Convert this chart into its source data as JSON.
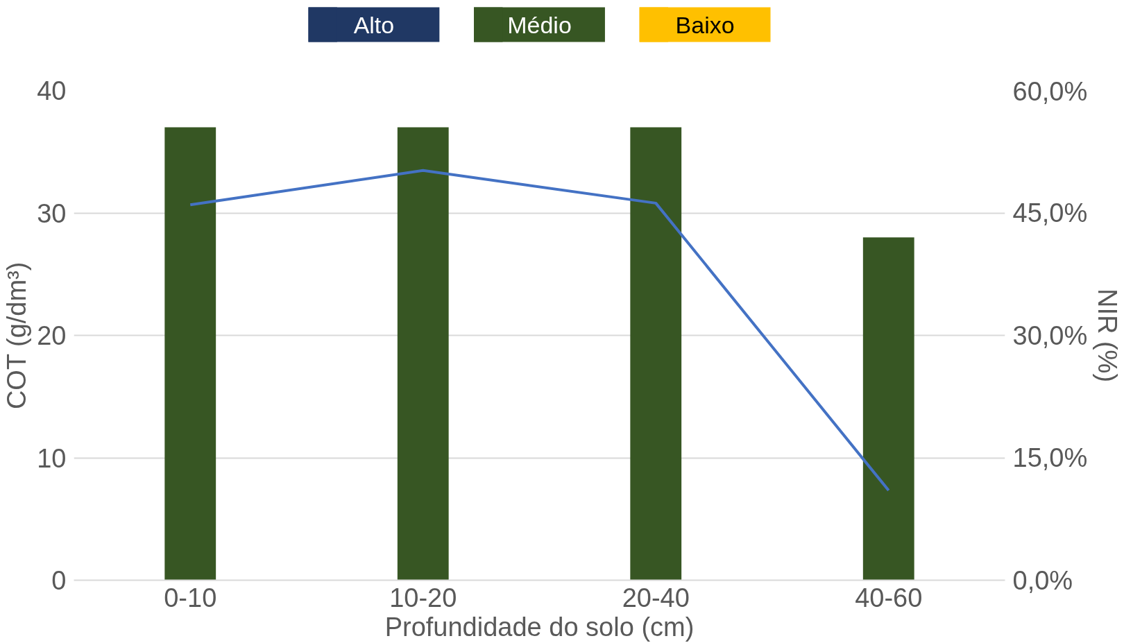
{
  "chart_data": {
    "type": "bar",
    "stacked": true,
    "xlabel": "Profundidade do solo (cm)",
    "ylabel": "COT (g/dm³)",
    "y2label": "NIR (%)",
    "categories": [
      "0-10",
      "10-20",
      "20-40",
      "40-60"
    ],
    "series": [
      {
        "name": "Alto",
        "color": "#203864",
        "values": [
          null,
          null,
          null,
          null
        ]
      },
      {
        "name": "Médio",
        "color": "#375623",
        "values": [
          37,
          37,
          37,
          28
        ]
      },
      {
        "name": "Baixo",
        "color": "#ffc000",
        "values": [
          null,
          null,
          null,
          null
        ]
      },
      {
        "type": "line",
        "axis": "y2",
        "color": "#4472c4",
        "values": [
          46.0,
          50.2,
          46.2,
          11.0
        ]
      }
    ],
    "ylim": [
      0,
      40
    ],
    "yticks": [
      0,
      10,
      20,
      30,
      40
    ],
    "y2lim": [
      0,
      60
    ],
    "y2ticks": [
      {
        "value": 0,
        "label": "0,0%"
      },
      {
        "value": 15,
        "label": "15,0%"
      },
      {
        "value": 30,
        "label": "30,0%"
      },
      {
        "value": 45,
        "label": "45,0%"
      },
      {
        "value": 60,
        "label": "60,0%"
      }
    ],
    "grid": "y",
    "legend": "top"
  }
}
